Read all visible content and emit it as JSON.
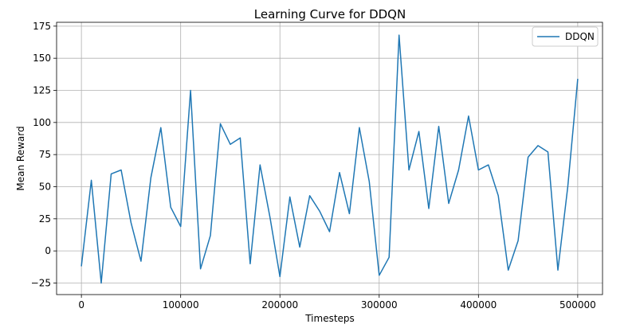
{
  "chart_data": {
    "type": "line",
    "title": "Learning Curve for DDQN",
    "xlabel": "Timesteps",
    "ylabel": "Mean Reward",
    "xlim": [
      -25000,
      525000
    ],
    "ylim": [
      -34,
      178
    ],
    "xticks": [
      0,
      100000,
      200000,
      300000,
      400000,
      500000
    ],
    "xtick_labels": [
      "0",
      "100000",
      "200000",
      "300000",
      "400000",
      "500000"
    ],
    "yticks": [
      -25,
      0,
      25,
      50,
      75,
      100,
      125,
      150,
      175
    ],
    "ytick_labels": [
      "−25",
      "0",
      "25",
      "50",
      "75",
      "100",
      "125",
      "150",
      "175"
    ],
    "grid": true,
    "legend_position": "top-right",
    "series": [
      {
        "name": "DDQN",
        "color": "#1f77b4",
        "x": [
          0,
          10000,
          20000,
          30000,
          40000,
          50000,
          60000,
          70000,
          80000,
          90000,
          100000,
          110000,
          120000,
          130000,
          140000,
          150000,
          160000,
          170000,
          180000,
          190000,
          200000,
          210000,
          220000,
          230000,
          240000,
          250000,
          260000,
          270000,
          280000,
          290000,
          300000,
          310000,
          320000,
          330000,
          340000,
          350000,
          360000,
          370000,
          380000,
          390000,
          400000,
          410000,
          420000,
          430000,
          440000,
          450000,
          460000,
          470000,
          480000,
          490000,
          500000
        ],
        "values": [
          -12,
          55,
          -25,
          60,
          63,
          22,
          -8,
          57,
          96,
          34,
          19,
          125,
          -14,
          12,
          99,
          83,
          88,
          -10,
          67,
          26,
          -20,
          42,
          3,
          43,
          31,
          15,
          61,
          29,
          96,
          54,
          -19,
          -5,
          168,
          63,
          93,
          33,
          97,
          37,
          63,
          105,
          63,
          67,
          43,
          -15,
          8,
          73,
          82,
          77,
          -15,
          50,
          134
        ]
      }
    ]
  }
}
